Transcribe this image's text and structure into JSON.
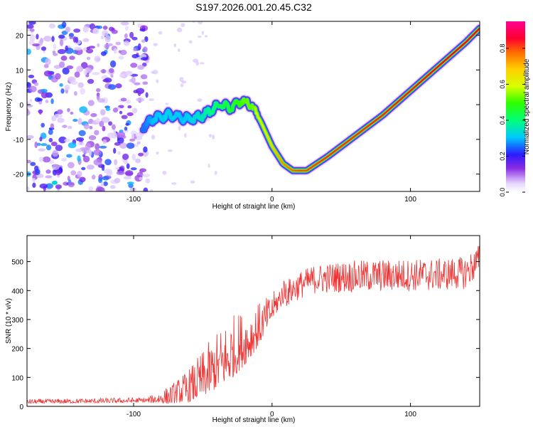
{
  "title": "S197.2026.001.20.45.C32",
  "chart_data": [
    {
      "type": "heatmap",
      "title": "S197.2026.001.20.45.C32",
      "xlabel": "Height of straight line (km)",
      "ylabel": "Frequency (Hz)",
      "xlim": [
        -177,
        150
      ],
      "ylim": [
        -25,
        24
      ],
      "xticks": [
        -100,
        0,
        100
      ],
      "yticks": [
        -20,
        -10,
        0,
        10,
        20
      ],
      "colorbar": {
        "label": "Normalized spectral amplitude",
        "range": [
          0,
          0.95
        ],
        "ticks": [
          0.0,
          0.2,
          0.4,
          0.6,
          0.8
        ],
        "tick_labels": [
          "0.0",
          "0.2",
          "0.4",
          "0.6",
          "0.8"
        ]
      },
      "ridge": {
        "x": [
          -93,
          -85,
          -75,
          -65,
          -55,
          -45,
          -38,
          -30,
          -22,
          -15,
          -8,
          0,
          8,
          15,
          20,
          25,
          40,
          60,
          80,
          100,
          120,
          140,
          150
        ],
        "freq": [
          -6,
          -4,
          -3,
          -4,
          -4,
          -2,
          0,
          -1,
          1,
          0,
          -5,
          -12,
          -17,
          -19,
          -19,
          -19,
          -15,
          -9,
          -3,
          4,
          11,
          18,
          22
        ],
        "amp": [
          0.25,
          0.3,
          0.32,
          0.3,
          0.33,
          0.38,
          0.42,
          0.45,
          0.5,
          0.55,
          0.6,
          0.68,
          0.74,
          0.78,
          0.8,
          0.8,
          0.82,
          0.82,
          0.83,
          0.84,
          0.85,
          0.86,
          0.86
        ]
      },
      "noise_region_x": [
        -177,
        -90
      ]
    },
    {
      "type": "line",
      "xlabel": "Height of straight line (km)",
      "ylabel": "SNR (10 * v/v)",
      "xlim": [
        -177,
        150
      ],
      "ylim": [
        0,
        590
      ],
      "xticks": [
        -100,
        0,
        100
      ],
      "yticks": [
        0,
        100,
        200,
        300,
        400,
        500
      ],
      "series": [
        {
          "name": "SNR",
          "color": "#ee3333",
          "trend_x": [
            -177,
            -120,
            -90,
            -75,
            -60,
            -50,
            -40,
            -30,
            -20,
            -10,
            0,
            10,
            20,
            30,
            50,
            80,
            120,
            140,
            150
          ],
          "trend_y": [
            15,
            18,
            20,
            30,
            55,
            90,
            130,
            170,
            210,
            260,
            330,
            400,
            430,
            450,
            460,
            465,
            468,
            475,
            520
          ],
          "noise_amplitude": [
            [
              -177,
              10
            ],
            [
              -90,
              12
            ],
            [
              -70,
              50
            ],
            [
              -45,
              120
            ],
            [
              -30,
              150
            ],
            [
              -15,
              120
            ],
            [
              0,
              60
            ],
            [
              20,
              60
            ],
            [
              60,
              70
            ],
            [
              150,
              70
            ]
          ]
        }
      ]
    }
  ]
}
